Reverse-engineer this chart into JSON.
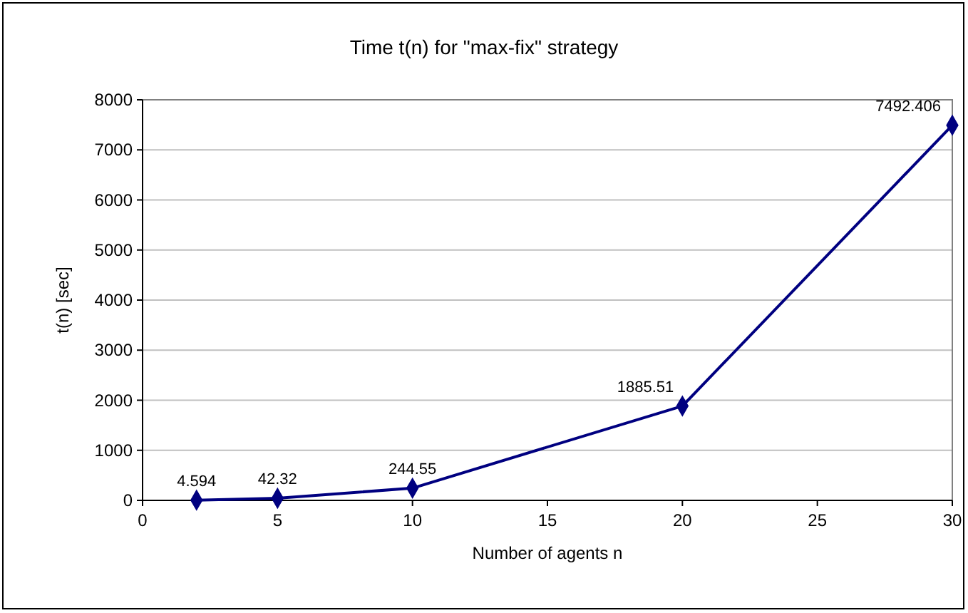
{
  "chart_data": {
    "type": "line",
    "title": "Time t(n) for \"max-fix\" strategy",
    "xlabel": "Number of agents n",
    "ylabel": "t(n) [sec]",
    "x": [
      2,
      5,
      10,
      20,
      30
    ],
    "series": [
      {
        "color": "#000080",
        "values": [
          4.594,
          42.32,
          244.55,
          1885.51,
          7492.406
        ]
      }
    ],
    "xlim": [
      0,
      30
    ],
    "xticks": [
      0,
      5,
      10,
      15,
      20,
      25,
      30
    ],
    "ylim": [
      0,
      8000
    ],
    "yticks": [
      0,
      1000,
      2000,
      3000,
      4000,
      5000,
      6000,
      7000,
      8000
    ],
    "grid": "y",
    "marker": "diamond",
    "line_style": "solid",
    "data_labels": true
  }
}
